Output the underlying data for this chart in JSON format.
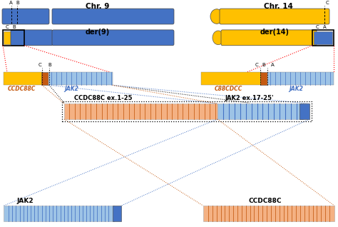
{
  "bg_color": "#ffffff",
  "chr9_label": "Chr. 9",
  "chr14_label": "Chr. 14",
  "der9_label": "der(9)",
  "der14_label": "der(14)",
  "blue": "#4472C4",
  "blue_light": "#9DC3E6",
  "blue_dark": "#2E5090",
  "gold": "#FFC000",
  "orange": "#C55A11",
  "orange_light": "#F4B183",
  "red": "#FF0000",
  "CCDC88C_label": "CCDC88C ex.1-25",
  "JAK2_mid_label": "JAK2 ex.17-25'",
  "JAK2_bot_label": "JAK2",
  "CCDC88C_bot_label": "CCDC88C",
  "ccdc88c_italic": "CCDC88C",
  "jak2_italic": "JAK2",
  "c88cdcc_italic": "C88CDCC",
  "jak2_right_italic": "JAK2"
}
